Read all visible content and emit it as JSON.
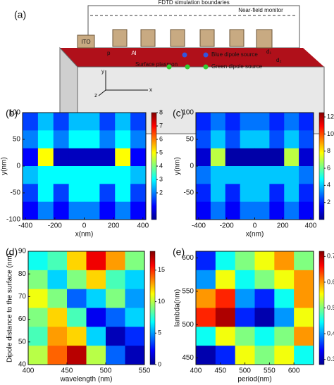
{
  "diagram": {
    "panel_label": "(a)",
    "boundary": "FDTD simulation boundaries",
    "monitor": "Near-field monitor",
    "ito": "ITO",
    "al": "Al",
    "period": "p",
    "plasmon": "Surface plasmon",
    "blue": "Blue dipole source",
    "green": "Green dipole source",
    "d1": "d₁",
    "d2": "d₂",
    "ax_y": "y",
    "ax_z": "z",
    "ax_x": "x"
  },
  "chart_data": [
    {
      "type": "heatmap",
      "panel_label": "(b)",
      "xlabel": "x(nm)",
      "ylabel": "y(nm)",
      "xlim": [
        -420,
        420
      ],
      "ylim": [
        -100,
        100
      ],
      "xticks": [
        -400,
        -200,
        0,
        200,
        400
      ],
      "yticks": [
        -100,
        -50,
        0,
        50,
        100
      ],
      "zlim": [
        0,
        8
      ],
      "zticks": [
        2,
        3,
        4,
        5,
        6,
        7,
        8
      ],
      "colormap": "jet",
      "z": [
        [
          1.5,
          2.5,
          1.5,
          2.5,
          2.5,
          1.5,
          2.5,
          1.5
        ],
        [
          2,
          3,
          2,
          3,
          3,
          2,
          3,
          2
        ],
        [
          1,
          5,
          0.5,
          0.5,
          0.5,
          0.5,
          5,
          1
        ],
        [
          2.5,
          3,
          3,
          3,
          3,
          3,
          3,
          2.5
        ],
        [
          1.5,
          3,
          1.5,
          3,
          3,
          1.5,
          3,
          1.5
        ],
        [
          1,
          2,
          1,
          2,
          2,
          1,
          2,
          1
        ]
      ]
    },
    {
      "type": "heatmap",
      "panel_label": "(c)",
      "xlabel": "x(nm)",
      "ylabel": "y(nm)",
      "xlim": [
        -420,
        420
      ],
      "ylim": [
        -100,
        100
      ],
      "xticks": [
        -400,
        -200,
        0,
        200,
        400
      ],
      "yticks": [
        -50,
        0,
        50,
        100
      ],
      "zlim": [
        0,
        12.5
      ],
      "zticks": [
        2,
        4,
        6,
        8,
        10,
        12
      ],
      "colormap": "jet",
      "z": [
        [
          2,
          3,
          2,
          3,
          3,
          2,
          3,
          2
        ],
        [
          2.5,
          4,
          2.5,
          4,
          4,
          2.5,
          4,
          2.5
        ],
        [
          1,
          7,
          0.5,
          0.5,
          0.5,
          0.5,
          7,
          1
        ],
        [
          3,
          4,
          4,
          4,
          4,
          4,
          4,
          3
        ],
        [
          2,
          4,
          2,
          4,
          4,
          2,
          4,
          2
        ],
        [
          1.5,
          3,
          1.5,
          3,
          3,
          1.5,
          3,
          1.5
        ]
      ]
    },
    {
      "type": "heatmap",
      "panel_label": "(d)",
      "xlabel": "wavelength (nm)",
      "ylabel": "Dipole distance to the surface (nm)",
      "xlim": [
        400,
        550
      ],
      "ylim": [
        40,
        90
      ],
      "xticks": [
        400,
        450,
        500,
        550
      ],
      "yticks": [
        40,
        50,
        60,
        70,
        80,
        90
      ],
      "zlim": [
        0,
        18
      ],
      "zticks": [
        0,
        5,
        10,
        15
      ],
      "colormap": "jet",
      "z": [
        [
          7,
          8,
          12,
          16,
          13,
          9
        ],
        [
          9,
          6,
          9,
          12,
          8,
          6
        ],
        [
          11,
          9,
          4,
          6,
          9,
          5
        ],
        [
          9,
          12,
          8,
          2,
          4,
          6
        ],
        [
          8,
          13,
          12,
          6,
          1,
          3
        ],
        [
          10,
          14,
          17,
          10,
          4,
          1
        ]
      ]
    },
    {
      "type": "heatmap",
      "panel_label": "(e)",
      "xlabel": "period(nm)",
      "ylabel": "lambda(nm)",
      "xlim": [
        400,
        640
      ],
      "ylim": [
        440,
        610
      ],
      "xticks": [
        400,
        450,
        500,
        550,
        600
      ],
      "yticks": [
        450,
        500,
        550,
        600
      ],
      "zlim": [
        0.28,
        0.72
      ],
      "zticks": [
        0.3,
        0.4,
        0.5,
        0.6,
        0.7
      ],
      "colormap": "jet",
      "z": [
        [
          0.35,
          0.45,
          0.5,
          0.55,
          0.6,
          0.5
        ],
        [
          0.4,
          0.55,
          0.45,
          0.5,
          0.55,
          0.6
        ],
        [
          0.6,
          0.65,
          0.4,
          0.35,
          0.45,
          0.6
        ],
        [
          0.65,
          0.7,
          0.35,
          0.3,
          0.4,
          0.55
        ],
        [
          0.45,
          0.55,
          0.5,
          0.45,
          0.5,
          0.6
        ],
        [
          0.3,
          0.35,
          0.55,
          0.5,
          0.55,
          0.45
        ]
      ]
    }
  ]
}
